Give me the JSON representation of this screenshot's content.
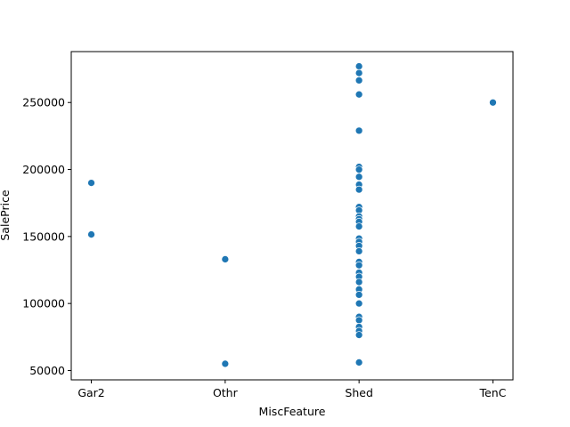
{
  "chart_data": {
    "type": "scatter",
    "title": "",
    "xlabel": "MiscFeature",
    "ylabel": "SalePrice",
    "categories": [
      "Gar2",
      "Othr",
      "Shed",
      "TenC"
    ],
    "ylim": [
      43000,
      288000
    ],
    "yticks": [
      50000,
      100000,
      150000,
      200000,
      250000
    ],
    "ytick_labels": [
      "50000",
      "100000",
      "150000",
      "200000",
      "250000"
    ],
    "grid": false,
    "point_color": "#1f77b4",
    "series": [
      {
        "points": [
          {
            "x": "Gar2",
            "y": 190000
          },
          {
            "x": "Gar2",
            "y": 151500
          },
          {
            "x": "Othr",
            "y": 133000
          },
          {
            "x": "Othr",
            "y": 55000
          },
          {
            "x": "Shed",
            "y": 277000
          },
          {
            "x": "Shed",
            "y": 272000
          },
          {
            "x": "Shed",
            "y": 266500
          },
          {
            "x": "Shed",
            "y": 256000
          },
          {
            "x": "Shed",
            "y": 229000
          },
          {
            "x": "Shed",
            "y": 202000
          },
          {
            "x": "Shed",
            "y": 199900
          },
          {
            "x": "Shed",
            "y": 194500
          },
          {
            "x": "Shed",
            "y": 188700
          },
          {
            "x": "Shed",
            "y": 185000
          },
          {
            "x": "Shed",
            "y": 172000
          },
          {
            "x": "Shed",
            "y": 169500
          },
          {
            "x": "Shed",
            "y": 165000
          },
          {
            "x": "Shed",
            "y": 163000
          },
          {
            "x": "Shed",
            "y": 161000
          },
          {
            "x": "Shed",
            "y": 157500
          },
          {
            "x": "Shed",
            "y": 148500
          },
          {
            "x": "Shed",
            "y": 146000
          },
          {
            "x": "Shed",
            "y": 143000
          },
          {
            "x": "Shed",
            "y": 139000
          },
          {
            "x": "Shed",
            "y": 131000
          },
          {
            "x": "Shed",
            "y": 128500
          },
          {
            "x": "Shed",
            "y": 123000
          },
          {
            "x": "Shed",
            "y": 120000
          },
          {
            "x": "Shed",
            "y": 116000
          },
          {
            "x": "Shed",
            "y": 110500
          },
          {
            "x": "Shed",
            "y": 106500
          },
          {
            "x": "Shed",
            "y": 100000
          },
          {
            "x": "Shed",
            "y": 90000
          },
          {
            "x": "Shed",
            "y": 87500
          },
          {
            "x": "Shed",
            "y": 82500
          },
          {
            "x": "Shed",
            "y": 79500
          },
          {
            "x": "Shed",
            "y": 76500
          },
          {
            "x": "Shed",
            "y": 56000
          },
          {
            "x": "TenC",
            "y": 250000
          }
        ]
      }
    ]
  }
}
